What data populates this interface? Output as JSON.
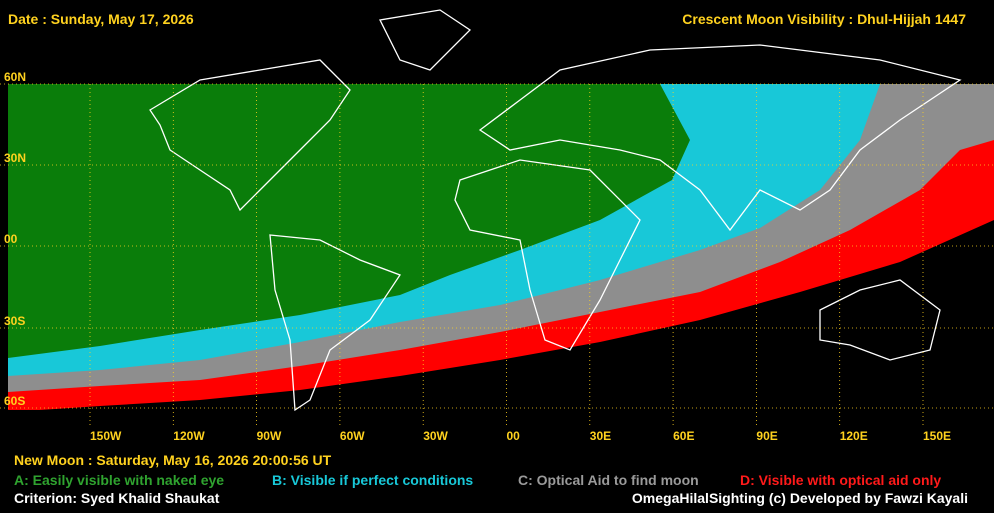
{
  "header": {
    "date": "Date : Sunday, May 17, 2026",
    "title": "Crescent Moon Visibility : Dhul-Hijjah  1447"
  },
  "lat_labels": [
    "60N",
    "30N",
    "00",
    "30S",
    "60S"
  ],
  "lon_labels": [
    "150W",
    "120W",
    "90W",
    "60W",
    "30W",
    "00",
    "30E",
    "60E",
    "90E",
    "120E",
    "150E"
  ],
  "footer": {
    "new_moon": "New Moon : Saturday, May 16, 2026  20:00:56  UT",
    "legend_a": "A: Easily visible with naked eye",
    "legend_b": "B: Visible if perfect conditions",
    "legend_c": "C: Optical Aid to find moon",
    "legend_d": "D: Visible with optical aid only",
    "criterion": "Criterion: Syed Khalid Shaukat",
    "credit": "OmegaHilalSighting  (c)  Developed by Fawzi Kayali"
  }
}
